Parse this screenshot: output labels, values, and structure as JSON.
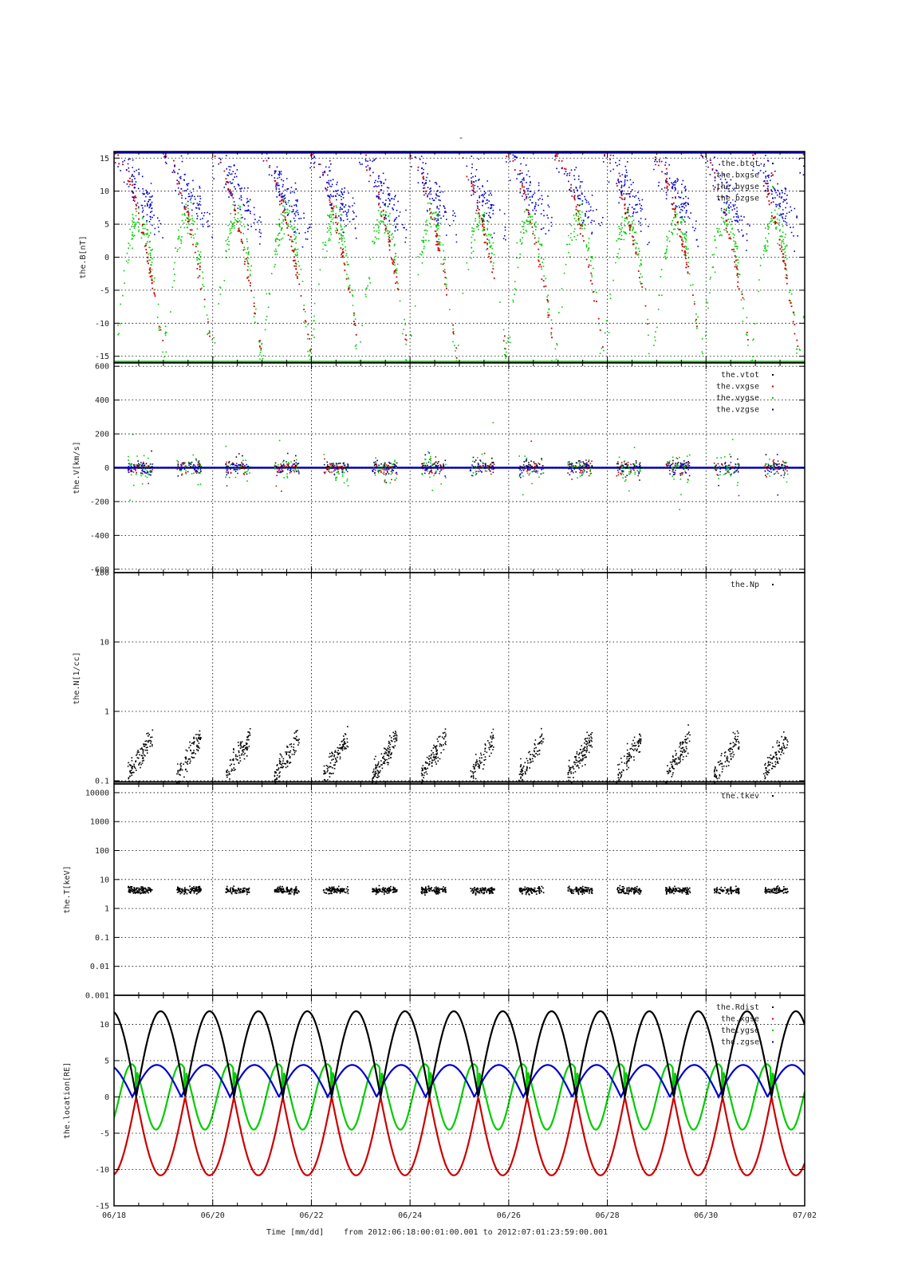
{
  "figure": {
    "title_mark": "-",
    "xlabel_prefix": "Time [mm/dd]",
    "range_text": "from 2012:06:18:00:01:00.001  to  2012:07:01:23:59:00.001",
    "x_ticks": [
      "06/18",
      "06/20",
      "06/22",
      "06/24",
      "06/26",
      "06/28",
      "06/30",
      "07/02"
    ],
    "x_range_days": [
      0,
      14
    ],
    "colors": {
      "black": "#000000",
      "red": "#cc0000",
      "green": "#00cc00",
      "blue": "#0000cc"
    }
  },
  "chart_data": [
    {
      "type": "scatter",
      "ylabel": "the.B[nT]",
      "ylim": [
        -16,
        16
      ],
      "yticks": [
        "15",
        "10",
        "5",
        "0",
        "-5",
        "-10",
        "-15"
      ],
      "ytick_values": [
        15,
        10,
        5,
        0,
        -5,
        -10,
        -15
      ],
      "legend_position": "top-right",
      "series": [
        {
          "name": "the.btot",
          "color": "#000000"
        },
        {
          "name": "the.bxgse",
          "color": "#cc0000"
        },
        {
          "name": "the.bygse",
          "color": "#00cc00"
        },
        {
          "name": "the.bzgse",
          "color": "#0000cc"
        }
      ]
    },
    {
      "type": "scatter",
      "ylabel": "the.V[km/s]",
      "ylim": [
        -620,
        620
      ],
      "yticks": [
        "600",
        "400",
        "200",
        "0",
        "-200",
        "-400",
        "-600"
      ],
      "ytick_values": [
        600,
        400,
        200,
        0,
        -200,
        -400,
        -600
      ],
      "legend_position": "top-right",
      "series": [
        {
          "name": "the.vtot",
          "color": "#000000"
        },
        {
          "name": "the.vxgse",
          "color": "#cc0000"
        },
        {
          "name": "the.vygse",
          "color": "#00cc00"
        },
        {
          "name": "the.vzgse",
          "color": "#0000cc"
        }
      ]
    },
    {
      "type": "scatter",
      "ylabel": "the.N[1/cc]",
      "yscale": "log",
      "ylim": [
        0.09,
        100
      ],
      "yticks": [
        "100",
        "10",
        "1",
        "0.1"
      ],
      "ytick_values": [
        100,
        10,
        1,
        0.1
      ],
      "legend_position": "top-right",
      "series": [
        {
          "name": "the.Np",
          "color": "#000000"
        }
      ]
    },
    {
      "type": "scatter",
      "ylabel": "the.T[keV]",
      "yscale": "log",
      "ylim": [
        0.001,
        20000
      ],
      "yticks": [
        "10000",
        "1000",
        "100",
        "10",
        "1",
        "0.1",
        "0.01",
        "0.001"
      ],
      "ytick_values": [
        10000,
        1000,
        100,
        10,
        1,
        0.1,
        0.01,
        0.001
      ],
      "legend_position": "top-right",
      "series": [
        {
          "name": "the.tkev",
          "color": "#000000"
        }
      ]
    },
    {
      "type": "line",
      "ylabel": "the.location[RE]",
      "ylim": [
        -15,
        14
      ],
      "yticks": [
        "10",
        "5",
        "0",
        "-5",
        "-10",
        "-15"
      ],
      "ytick_values": [
        10,
        5,
        0,
        -5,
        -10,
        -15
      ],
      "legend_position": "top-right",
      "orbit_period_days": 0.9905,
      "series": [
        {
          "name": "the.Rdist",
          "color": "#000000",
          "peak": 11.8
        },
        {
          "name": "the.xgse",
          "color": "#cc0000",
          "trough": -10.8
        },
        {
          "name": "the.ygse",
          "color": "#00cc00",
          "amplitude": 4.5
        },
        {
          "name": "the.zgse",
          "color": "#0000cc",
          "peak": 4.4
        }
      ]
    }
  ]
}
